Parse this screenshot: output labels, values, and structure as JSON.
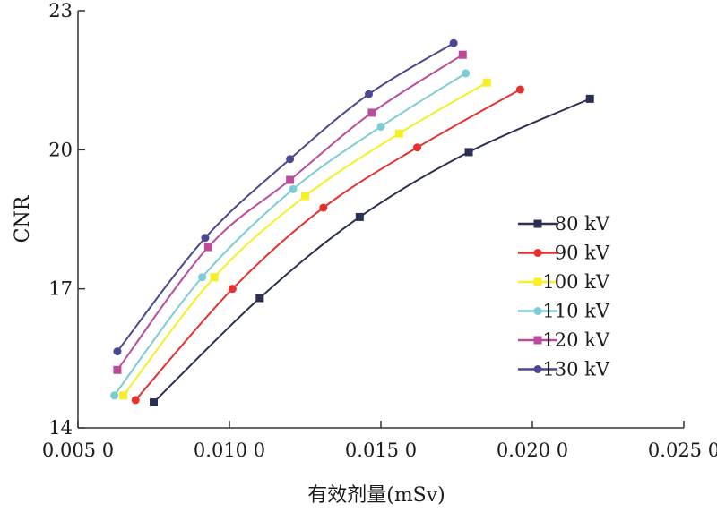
{
  "chart_data": {
    "type": "line",
    "title": "",
    "xlabel": "有效剂量(mSv)",
    "ylabel": "CNR",
    "xlim": [
      0.005,
      0.025
    ],
    "ylim": [
      14,
      23
    ],
    "xticks": [
      0.005,
      0.01,
      0.015,
      0.02,
      0.025
    ],
    "xtick_labels": [
      "0.005 0",
      "0.010 0",
      "0.015 0",
      "0.020  0",
      "0.025 0"
    ],
    "yticks": [
      14,
      17,
      20,
      23
    ],
    "ytick_labels": [
      "14",
      "17",
      "20",
      "23"
    ],
    "grid": false,
    "legend_position": "right",
    "series": [
      {
        "name": "80 kV",
        "color": "#2b2f52",
        "marker": "square",
        "x": [
          0.0075,
          0.011,
          0.0143,
          0.0179,
          0.0219
        ],
        "y": [
          14.55,
          16.8,
          18.55,
          19.95,
          21.1
        ]
      },
      {
        "name": "90 kV",
        "color": "#e8302f",
        "marker": "circle",
        "x": [
          0.0069,
          0.0101,
          0.0131,
          0.0162,
          0.0196
        ],
        "y": [
          14.6,
          17.0,
          18.75,
          20.05,
          21.3
        ]
      },
      {
        "name": "100 kV",
        "color": "#f6ef24",
        "marker": "square",
        "x": [
          0.0065,
          0.0095,
          0.0125,
          0.0156,
          0.0185
        ],
        "y": [
          14.7,
          17.25,
          19.0,
          20.35,
          21.45
        ]
      },
      {
        "name": "110 kV",
        "color": "#7dcbd3",
        "marker": "circle",
        "x": [
          0.0062,
          0.0091,
          0.0121,
          0.015,
          0.0178
        ],
        "y": [
          14.7,
          17.25,
          19.15,
          20.5,
          21.65
        ]
      },
      {
        "name": "120 kV",
        "color": "#bb4c9c",
        "marker": "square",
        "x": [
          0.0063,
          0.0093,
          0.012,
          0.0147,
          0.0177
        ],
        "y": [
          15.25,
          17.9,
          19.35,
          20.8,
          22.05
        ]
      },
      {
        "name": "130 kV",
        "color": "#4a4890",
        "marker": "circle",
        "x": [
          0.0063,
          0.0092,
          0.012,
          0.0146,
          0.0174
        ],
        "y": [
          15.65,
          18.1,
          19.8,
          21.2,
          22.3
        ]
      }
    ]
  }
}
